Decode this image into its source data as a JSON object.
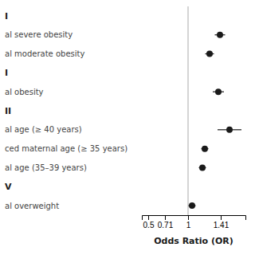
{
  "chart_data": {
    "type": "forest",
    "xlabel": "Odds Ratio (OR)",
    "categories": [
      "I",
      "al severe obesity",
      "al moderate obesity",
      "I",
      "al obesity",
      "II",
      "al age (≥ 40 years)",
      "ced maternal age (≥ 35 years)",
      "al age (35–39 years)",
      "V",
      "al overweight"
    ],
    "values": [
      null,
      1.4,
      1.27,
      null,
      1.38,
      null,
      1.52,
      1.21,
      1.18,
      null,
      1.05
    ],
    "ci_low": [
      null,
      1.335,
      1.215,
      null,
      1.31,
      null,
      1.37,
      1.165,
      1.135,
      null,
      1.005
    ],
    "ci_high": [
      null,
      1.465,
      1.325,
      null,
      1.45,
      null,
      1.67,
      1.255,
      1.225,
      null,
      1.095
    ],
    "ref_line": 1.0,
    "color": "#1a1a1a",
    "xlim": [
      0.42,
      1.72
    ],
    "xticks": [
      0.5,
      0.71,
      1,
      1.41
    ]
  }
}
